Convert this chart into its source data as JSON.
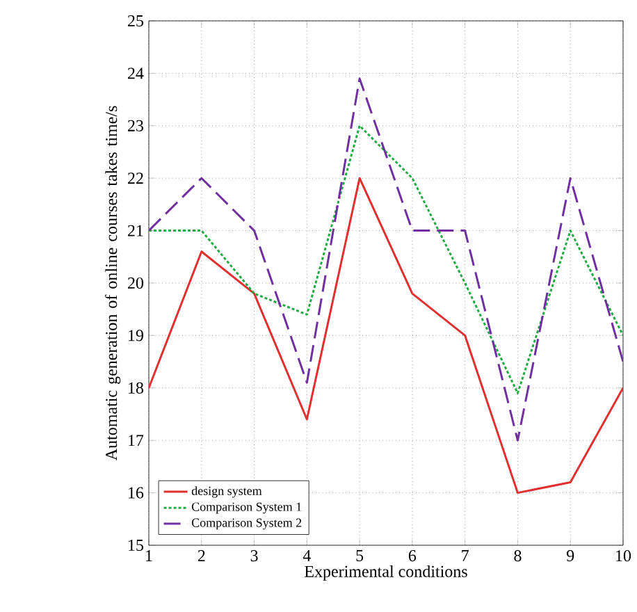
{
  "chart_data": {
    "type": "line",
    "xlabel": "Experimental conditions",
    "ylabel": "Automatic generation of online courses takes time/s",
    "x": [
      1,
      2,
      3,
      4,
      5,
      6,
      7,
      8,
      9,
      10
    ],
    "series": [
      {
        "name": "design system",
        "color": "#e03030",
        "line_style": "solid",
        "values": [
          18,
          20.6,
          19.8,
          17.4,
          22,
          19.8,
          19,
          16,
          16.2,
          18
        ]
      },
      {
        "name": "Comparison System 1",
        "color": "#22aa44",
        "line_style": "dotted",
        "values": [
          21,
          21,
          19.8,
          19.4,
          23,
          22,
          20,
          17.9,
          21,
          19
        ]
      },
      {
        "name": "Comparison System 2",
        "color": "#7030a0",
        "line_style": "dashed",
        "values": [
          21,
          22,
          21,
          18.1,
          23.9,
          21,
          21,
          17,
          22,
          18.5
        ]
      }
    ],
    "xlim": [
      1,
      10
    ],
    "ylim": [
      15,
      25
    ],
    "xticks": [
      1,
      2,
      3,
      4,
      5,
      6,
      7,
      8,
      9,
      10
    ],
    "yticks": [
      15,
      16,
      17,
      18,
      19,
      20,
      21,
      22,
      23,
      24,
      25
    ],
    "grid": true,
    "legend": "bottom left",
    "marker": "none"
  }
}
